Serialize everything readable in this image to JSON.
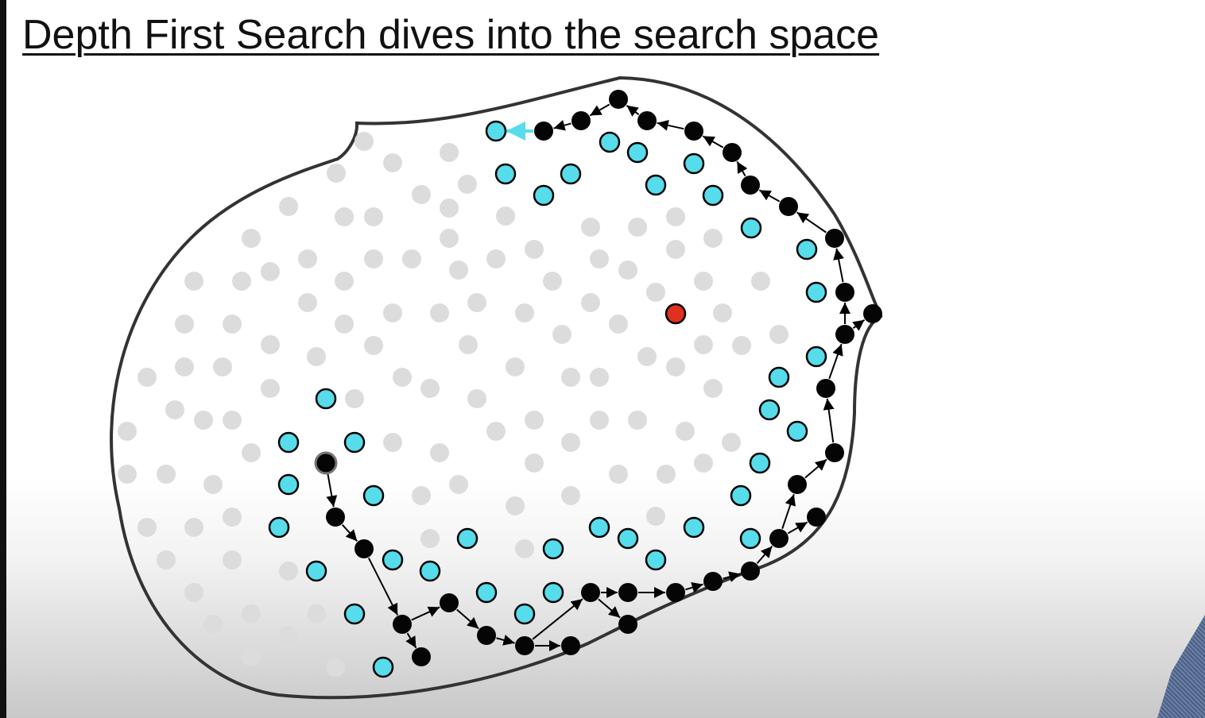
{
  "title": "Depth First Search dives into the search space",
  "colors": {
    "unvisited": "#dcdcdc",
    "frontier": "#56dcea",
    "visited": "#050505",
    "goal": "#e0301e",
    "boundary": "#333333",
    "frontier_arrow": "#56dcea"
  },
  "legend_meaning": [],
  "node_states": [
    "unvisited",
    "frontier",
    "visited",
    "goal"
  ]
}
